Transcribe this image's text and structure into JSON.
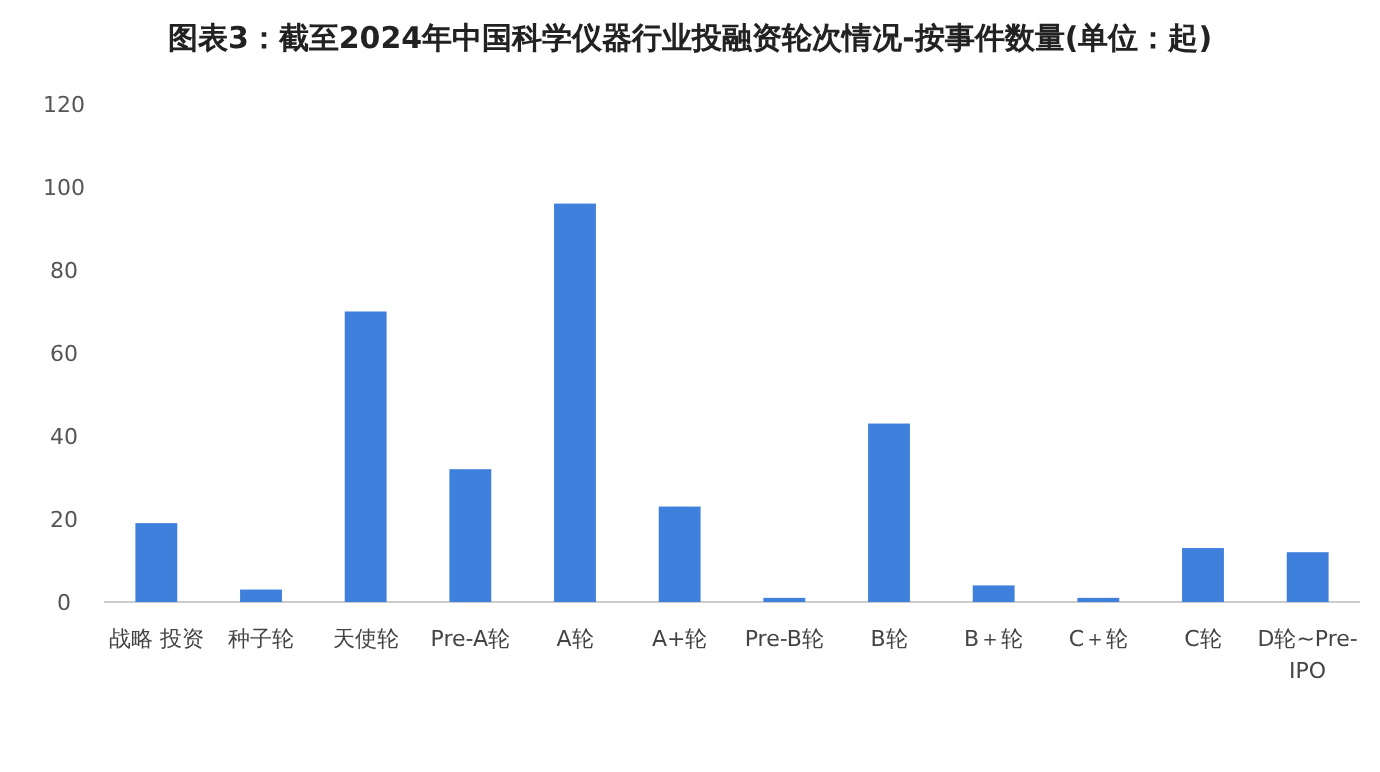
{
  "chart_data": {
    "type": "bar",
    "title": "图表3：截至2024年中国科学仪器行业投融资轮次情况-按事件数量(单位：起)",
    "categories": [
      "战略 投资",
      "种子轮",
      "天使轮",
      "Pre-A轮",
      "A轮",
      "A+轮",
      "Pre-B轮",
      "B轮",
      "B＋轮",
      "C＋轮",
      "C轮",
      "D轮~Pre-IPO"
    ],
    "values": [
      19,
      3,
      70,
      32,
      96,
      23,
      1,
      43,
      4,
      1,
      13,
      12
    ],
    "color": "#3f80dc",
    "ylim": [
      0,
      120
    ],
    "yticks": [
      0,
      20,
      40,
      60,
      80,
      100,
      120
    ],
    "grid": false
  }
}
